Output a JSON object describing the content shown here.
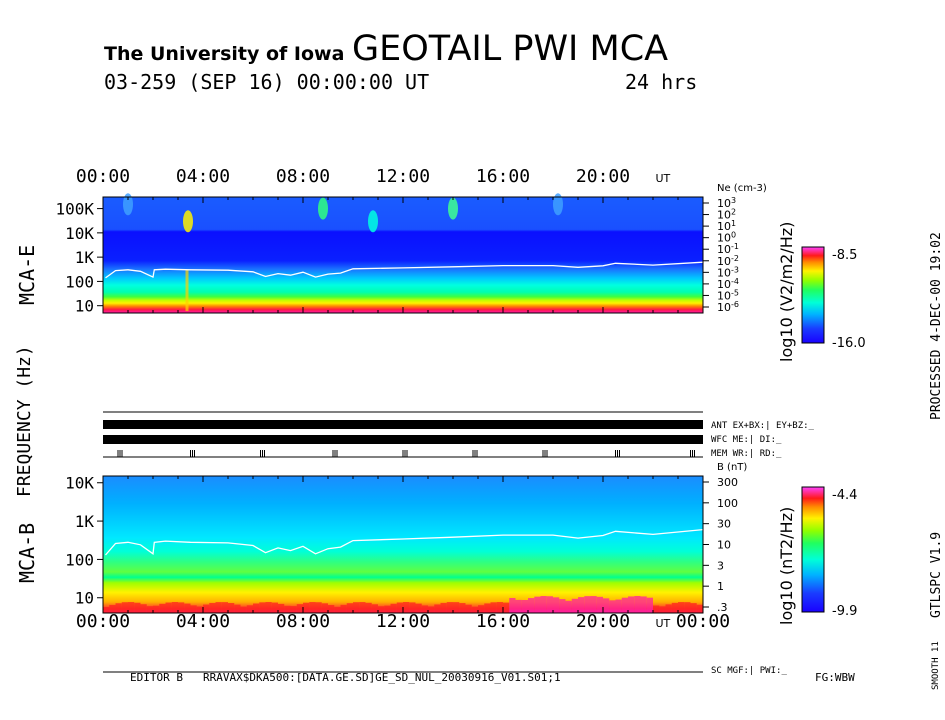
{
  "header": {
    "institution": "The University of Iowa",
    "title": "GEOTAIL PWI MCA",
    "date_line": "03-259 (SEP 16) 00:00:00 UT",
    "duration": "24 hrs"
  },
  "side_text": {
    "processed": "PROCESSED 4-DEC-00 19:02",
    "program": "GTLSPC V1.9",
    "smooth": "SMOOTH 11"
  },
  "footer": {
    "editor": "EDITOR B",
    "path": "RRAVAX$DKA500:[DATA.GE.SD]GE_SD_NUL_20030916_V01.S01;1",
    "fg": "FG:WBW"
  },
  "chart_data": [
    {
      "type": "heatmap",
      "title": "",
      "xlabel": "",
      "ylabel": "MCA-E",
      "shared_ylabel": "FREQUENCY (Hz)",
      "x_ticks": [
        "00:00",
        "04:00",
        "08:00",
        "12:00",
        "16:00",
        "20:00"
      ],
      "x_unit": "UT",
      "xlim_hours": [
        0,
        24
      ],
      "y_scale": "log",
      "y_ticks": [
        "100K",
        "10K",
        "1K",
        "100",
        "10"
      ],
      "ylim": [
        5,
        300000
      ],
      "right_axis": {
        "label": "Ne (cm-3)",
        "ticks": [
          "10^3",
          "10^2",
          "10^1",
          "10^0",
          "10^-1",
          "10^-2",
          "10^-3",
          "10^-4",
          "10^-5",
          "10^-6"
        ]
      },
      "colorbar": {
        "label": "log10 (V2/m2/Hz)",
        "max_label": "-8.5",
        "min_label": "-16.0",
        "range": [
          -16.0,
          -8.5
        ]
      },
      "line_trace": {
        "description": "",
        "time_hours": [
          0.1,
          0.5,
          1.0,
          1.5,
          2.0,
          2.05,
          2.5,
          3.5,
          5.0,
          6.0,
          6.5,
          7.0,
          7.5,
          8.0,
          8.5,
          9.0,
          9.5,
          10.0,
          12.0,
          14.0,
          16.0,
          18.0,
          19.0,
          20.0,
          20.5,
          22.0,
          24.0
        ],
        "freq_hz": [
          140,
          280,
          300,
          260,
          150,
          300,
          320,
          300,
          290,
          250,
          160,
          210,
          180,
          240,
          150,
          200,
          220,
          330,
          360,
          400,
          450,
          450,
          380,
          440,
          560,
          470,
          620
        ]
      }
    },
    {
      "type": "heatmap",
      "title": "",
      "xlabel": "",
      "ylabel": "MCA-B",
      "x_ticks": [
        "00:00",
        "04:00",
        "08:00",
        "12:00",
        "16:00",
        "20:00",
        "00:00"
      ],
      "x_unit": "UT",
      "xlim_hours": [
        0,
        24
      ],
      "y_scale": "log",
      "y_ticks": [
        "10K",
        "1K",
        "100",
        "10"
      ],
      "ylim": [
        4,
        15000
      ],
      "right_axis": {
        "label": "B (nT)",
        "ticks": [
          "300",
          "100",
          "30",
          "10",
          "3",
          "1",
          ".3"
        ]
      },
      "colorbar": {
        "label": "log10 (nT2/Hz)",
        "max_label": "-4.4",
        "min_label": "-9.9",
        "range": [
          -9.9,
          -4.4
        ]
      },
      "line_trace": {
        "description": "",
        "time_hours": [
          0.1,
          0.5,
          1.0,
          1.5,
          2.0,
          2.05,
          2.5,
          3.5,
          5.0,
          6.0,
          6.5,
          7.0,
          7.5,
          8.0,
          8.5,
          9.0,
          9.5,
          10.0,
          12.0,
          14.0,
          16.0,
          18.0,
          19.0,
          20.0,
          20.5,
          22.0,
          24.0
        ],
        "freq_hz": [
          130,
          260,
          280,
          240,
          140,
          280,
          300,
          280,
          270,
          230,
          150,
          200,
          170,
          220,
          140,
          190,
          210,
          310,
          340,
          380,
          430,
          430,
          360,
          420,
          540,
          450,
          600
        ]
      }
    }
  ],
  "status_bars": {
    "ant_label": "ANT EX+BX:| EY+BZ:_",
    "wfc_label": "WFC ME:| DI:_",
    "mem_label": "MEM WR:| RD:_",
    "sc_label": "SC MGF:| PWI:_",
    "mem_tick_hours": [
      0.6,
      3.5,
      6.3,
      9.2,
      12.0,
      14.8,
      17.6,
      20.5,
      23.5
    ]
  },
  "colors": {
    "scale": [
      "#1a00ff",
      "#1a3cff",
      "#00b4ff",
      "#00ffd8",
      "#20ff60",
      "#90ff00",
      "#fff200",
      "#ff8c00",
      "#ff1a1a",
      "#ff1ab0",
      "#ff40ff"
    ]
  }
}
